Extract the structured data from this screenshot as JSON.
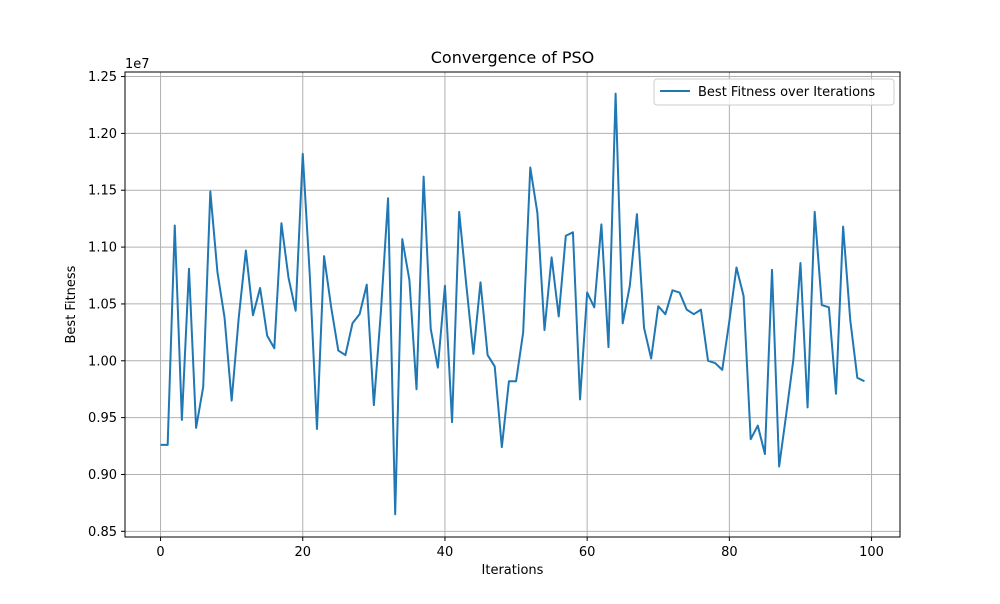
{
  "chart_data": {
    "type": "line",
    "title": "Convergence of PSO",
    "xlabel": "Iterations",
    "ylabel": "Best Fitness",
    "y_offset_label": "1e7",
    "xlim": [
      -5,
      104
    ],
    "ylim": [
      0.845,
      1.254
    ],
    "x_ticks": [
      0,
      20,
      40,
      60,
      80,
      100
    ],
    "x_tick_labels": [
      "0",
      "20",
      "40",
      "60",
      "80",
      "100"
    ],
    "y_ticks": [
      0.85,
      0.9,
      0.95,
      1.0,
      1.05,
      1.1,
      1.15,
      1.2,
      1.25
    ],
    "y_tick_labels": [
      "0.85",
      "0.90",
      "0.95",
      "1.00",
      "1.05",
      "1.10",
      "1.15",
      "1.20",
      "1.25"
    ],
    "grid": true,
    "legend_position": "top-right",
    "series": [
      {
        "name": "Best Fitness over Iterations",
        "color": "#1f77b4",
        "x": [
          0,
          1,
          2,
          3,
          4,
          5,
          6,
          7,
          8,
          9,
          10,
          11,
          12,
          13,
          14,
          15,
          16,
          17,
          18,
          19,
          20,
          21,
          22,
          23,
          24,
          25,
          26,
          27,
          28,
          29,
          30,
          31,
          32,
          33,
          34,
          35,
          36,
          37,
          38,
          39,
          40,
          41,
          42,
          43,
          44,
          45,
          46,
          47,
          48,
          49,
          50,
          51,
          52,
          53,
          54,
          55,
          56,
          57,
          58,
          59,
          60,
          61,
          62,
          63,
          64,
          65,
          66,
          67,
          68,
          69,
          70,
          71,
          72,
          73,
          74,
          75,
          76,
          77,
          78,
          79,
          80,
          81,
          82,
          83,
          84,
          85,
          86,
          87,
          88,
          89,
          90,
          91,
          92,
          93,
          94,
          95,
          96,
          97,
          98,
          99
        ],
        "values": [
          0.926,
          0.926,
          1.119,
          0.948,
          1.081,
          0.941,
          0.977,
          1.149,
          1.078,
          1.038,
          0.965,
          1.038,
          1.097,
          1.04,
          1.064,
          1.022,
          1.011,
          1.121,
          1.073,
          1.044,
          1.182,
          1.074,
          0.94,
          1.092,
          1.047,
          1.009,
          1.005,
          1.033,
          1.041,
          1.067,
          0.961,
          1.044,
          1.143,
          0.865,
          1.107,
          1.071,
          0.975,
          1.162,
          1.028,
          0.994,
          1.066,
          0.946,
          1.131,
          1.067,
          1.006,
          1.069,
          1.005,
          0.995,
          0.924,
          0.982,
          0.982,
          1.025,
          1.17,
          1.13,
          1.027,
          1.091,
          1.039,
          1.11,
          1.113,
          0.966,
          1.06,
          1.047,
          1.12,
          1.012,
          1.235,
          1.033,
          1.066,
          1.129,
          1.029,
          1.002,
          1.048,
          1.041,
          1.062,
          1.06,
          1.045,
          1.041,
          1.045,
          1.0,
          0.998,
          0.992,
          1.035,
          1.082,
          1.057,
          0.931,
          0.943,
          0.918,
          1.08,
          0.907,
          0.953,
          1.001,
          1.086,
          0.959,
          1.131,
          1.049,
          1.047,
          0.971,
          1.118,
          1.036,
          0.985,
          0.982
        ]
      }
    ]
  }
}
